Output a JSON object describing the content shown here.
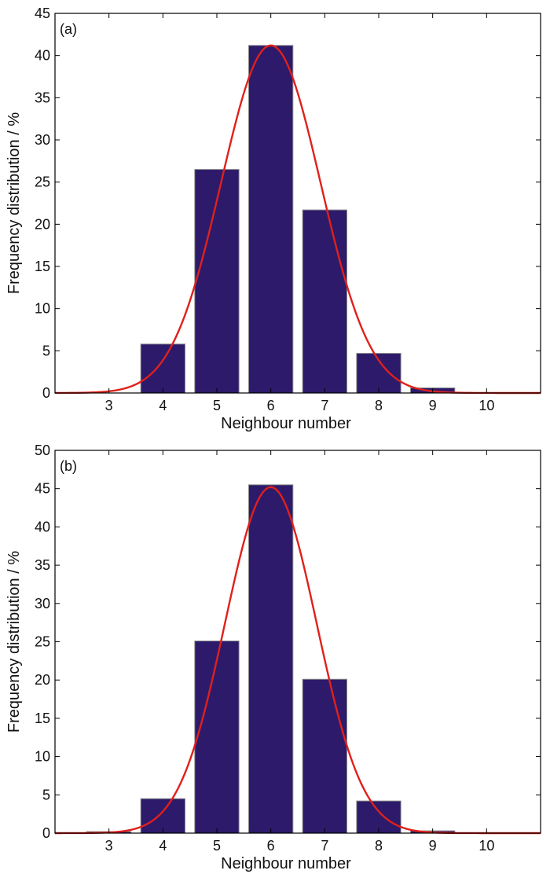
{
  "chart_data": [
    {
      "type": "bar",
      "panel_label": "(a)",
      "categories": [
        "3",
        "4",
        "5",
        "6",
        "7",
        "8",
        "9",
        "10"
      ],
      "values": [
        0.0,
        5.8,
        26.5,
        41.2,
        21.7,
        4.7,
        0.6,
        0.0
      ],
      "fit_curve": {
        "type": "gaussian",
        "mean": 6.0,
        "sigma": 0.92,
        "peak": 41.2,
        "x_range": [
          2,
          11
        ]
      },
      "xlabel": "Neighbour number",
      "ylabel": "Frequency distribution / %",
      "xlim": [
        2,
        11
      ],
      "ylim": [
        0,
        45
      ],
      "yticks": [
        0,
        5,
        10,
        15,
        20,
        25,
        30,
        35,
        40,
        45
      ],
      "grid": false,
      "colors": {
        "bar": "#2d1a6b",
        "curve": "#e0201b"
      }
    },
    {
      "type": "bar",
      "panel_label": "(b)",
      "categories": [
        "3",
        "4",
        "5",
        "6",
        "7",
        "8",
        "9",
        "10"
      ],
      "values": [
        0.2,
        4.5,
        25.1,
        45.5,
        20.1,
        4.2,
        0.3,
        0.0
      ],
      "fit_curve": {
        "type": "gaussian",
        "mean": 6.0,
        "sigma": 0.85,
        "peak": 45.2,
        "x_range": [
          2,
          11
        ]
      },
      "xlabel": "Neighbour number",
      "ylabel": "Frequency distribution / %",
      "xlim": [
        2,
        11
      ],
      "ylim": [
        0,
        50
      ],
      "yticks": [
        0,
        5,
        10,
        15,
        20,
        25,
        30,
        35,
        40,
        45,
        50
      ],
      "grid": false,
      "colors": {
        "bar": "#2d1a6b",
        "curve": "#e0201b"
      }
    }
  ]
}
